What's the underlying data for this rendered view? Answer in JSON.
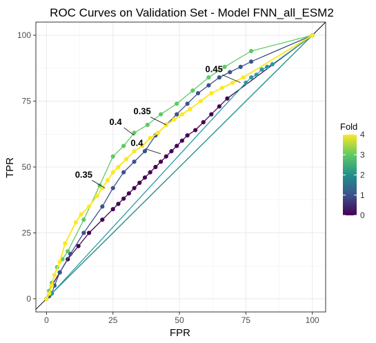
{
  "chart_data": {
    "type": "line",
    "title": "ROC Curves on Validation Set - Model FNN_all_ESM2",
    "xlabel": "FPR",
    "ylabel": "TPR",
    "xlim": [
      -4,
      105
    ],
    "ylim": [
      -5,
      105
    ],
    "x_ticks": [
      0,
      25,
      50,
      75,
      100
    ],
    "y_ticks": [
      0,
      25,
      50,
      75,
      100
    ],
    "grid": true,
    "diagonal_reference": true,
    "legend": {
      "title": "Fold",
      "position": "right",
      "type": "colorbar",
      "ticks": [
        0,
        1,
        2,
        3,
        4
      ],
      "range": [
        0,
        4
      ]
    },
    "series": [
      {
        "name": "0",
        "color": "#440154",
        "markers": true,
        "x": [
          0,
          2,
          5,
          8,
          12,
          16,
          21,
          25,
          27,
          29,
          31,
          33,
          35,
          37,
          39,
          41,
          43,
          45,
          47,
          49,
          51,
          53,
          56,
          59,
          62,
          65,
          68,
          100
        ],
        "y": [
          0,
          5,
          10,
          15,
          20,
          25,
          30,
          34,
          36,
          38,
          40,
          42,
          44,
          46,
          48,
          50,
          52,
          54,
          56,
          58,
          60,
          62,
          64,
          67,
          70,
          73,
          76,
          100
        ]
      },
      {
        "name": "1",
        "color": "#3b528b",
        "markers": true,
        "x": [
          0,
          1,
          2,
          3,
          5,
          9,
          14,
          21,
          25,
          29,
          33,
          37,
          41,
          45,
          49,
          53,
          57,
          61,
          65,
          69,
          73,
          77,
          100
        ],
        "y": [
          0,
          1,
          2,
          5,
          10,
          17,
          25,
          35,
          42,
          48,
          52,
          56,
          62,
          66,
          70,
          74,
          78,
          81,
          84,
          86,
          88,
          90,
          100
        ]
      },
      {
        "name": "2",
        "color": "#21908c",
        "markers": false,
        "x": [
          0,
          100
        ],
        "y": [
          0,
          100
        ]
      },
      {
        "name": "3",
        "color": "#2a9aa0",
        "markers": true,
        "x": [
          0,
          2,
          75,
          77,
          79,
          81,
          83,
          85,
          100
        ],
        "y": [
          0,
          2,
          82,
          84,
          85,
          87,
          88,
          89,
          100
        ]
      },
      {
        "name": "3.5",
        "color": "#5ec962",
        "markers": true,
        "x": [
          0,
          1,
          2,
          3,
          4,
          6,
          8,
          14,
          20,
          25,
          29,
          33,
          38,
          43,
          49,
          55,
          61,
          67,
          77,
          100
        ],
        "y": [
          0,
          3,
          6,
          9,
          12,
          15,
          18,
          30,
          43,
          54,
          58,
          63,
          66,
          70,
          74,
          79,
          84,
          88,
          94,
          100
        ]
      },
      {
        "name": "4",
        "color": "#fde725",
        "markers": true,
        "x": [
          0,
          1,
          2,
          3,
          5,
          7,
          11,
          13,
          16,
          19,
          21,
          23,
          25,
          27,
          30,
          33,
          36,
          39,
          42,
          45,
          48,
          51,
          54,
          58,
          62,
          66,
          70,
          74,
          100
        ],
        "y": [
          0,
          2,
          5,
          9,
          14,
          21,
          29,
          32,
          35,
          39,
          42,
          45,
          48,
          50,
          53,
          56,
          58,
          61,
          63,
          66,
          68,
          70,
          72,
          75,
          78,
          80,
          82,
          84,
          100
        ]
      }
    ],
    "annotations": [
      {
        "text": "0.45",
        "x": 63,
        "y": 86,
        "target_x": 73,
        "target_y": 82
      },
      {
        "text": "0.35",
        "x": 36,
        "y": 70,
        "target_x": 45,
        "target_y": 66
      },
      {
        "text": "0.4",
        "x": 26,
        "y": 66,
        "target_x": 33,
        "target_y": 62
      },
      {
        "text": "0.4",
        "x": 34,
        "y": 58,
        "target_x": 43,
        "target_y": 55
      },
      {
        "text": "0.35",
        "x": 14,
        "y": 46,
        "target_x": 22,
        "target_y": 42
      }
    ]
  }
}
